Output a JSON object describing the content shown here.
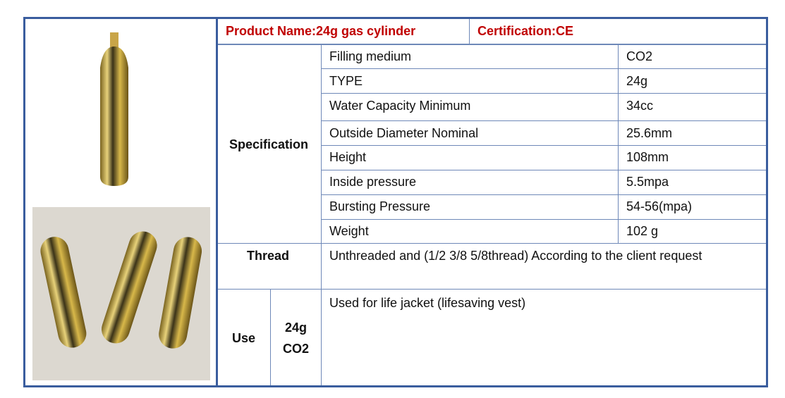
{
  "header": {
    "product_name": "Product Name:24g gas cylinder",
    "certification": "Certification:CE"
  },
  "specification": {
    "label": "Specification",
    "rows": [
      {
        "name": "Filling medium",
        "value": "CO2"
      },
      {
        "name": "TYPE",
        "value": "24g"
      },
      {
        "name": "Water Capacity Minimum",
        "value": "34cc"
      },
      {
        "name": "Outside Diameter Nominal",
        "value": "25.6mm"
      },
      {
        "name": "Height",
        "value": "108mm"
      },
      {
        "name": "Inside pressure",
        "value": "5.5mpa"
      },
      {
        "name": "Bursting Pressure",
        "value": "54-56(mpa)"
      },
      {
        "name": "Weight",
        "value": "102 g"
      }
    ]
  },
  "thread": {
    "label": "Thread",
    "value": "Unthreaded and (1/2 3/8 5/8thread) According to the client request"
  },
  "use": {
    "label": "Use",
    "type_line1": "24g",
    "type_line2": "CO2",
    "value": "Used for life jacket (lifesaving vest)"
  },
  "colors": {
    "border": "#3a5d9e",
    "header_text": "#c00000",
    "cylinder": "#c9a93a"
  }
}
